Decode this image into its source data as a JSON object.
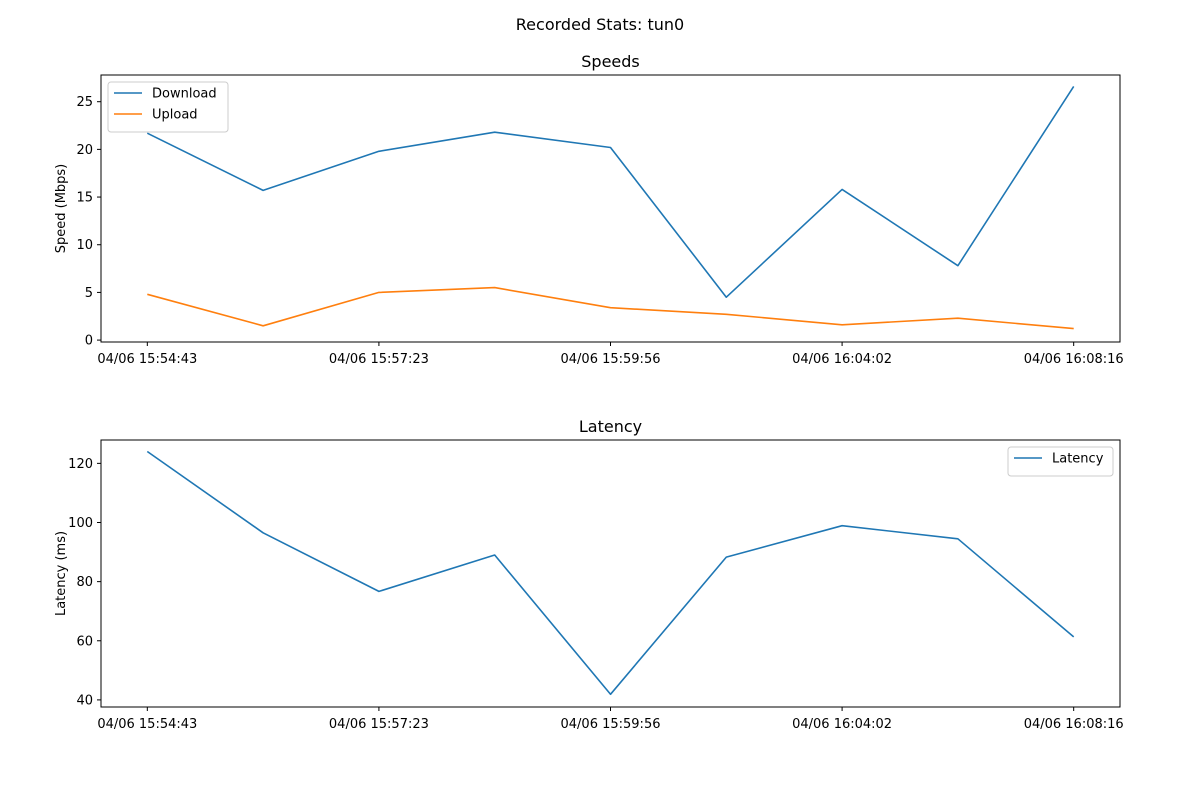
{
  "figure": {
    "title": "Recorded Stats: tun0"
  },
  "chart_data": [
    {
      "type": "line",
      "title": "Speeds",
      "xlabel": "",
      "ylabel": "Speed (Mbps)",
      "x_tick_labels": [
        "04/06 15:54:43",
        "04/06 15:57:23",
        "04/06 15:59:56",
        "04/06 16:04:02",
        "04/06 16:08:16"
      ],
      "x_tick_positions": [
        0,
        2,
        4,
        6,
        8
      ],
      "y_ticks": [
        0,
        5,
        10,
        15,
        20,
        25
      ],
      "ylim": [
        -0.2,
        27.8
      ],
      "xlim": [
        -0.4,
        8.4
      ],
      "grid": false,
      "legend": "upper left",
      "series": [
        {
          "name": "Download",
          "color": "#1f77b4",
          "values": [
            21.7,
            15.7,
            19.8,
            21.8,
            20.2,
            4.5,
            15.8,
            7.8,
            26.6
          ]
        },
        {
          "name": "Upload",
          "color": "#ff7f0e",
          "values": [
            4.8,
            1.5,
            5.0,
            5.5,
            3.4,
            2.7,
            1.6,
            2.3,
            1.2
          ]
        }
      ]
    },
    {
      "type": "line",
      "title": "Latency",
      "xlabel": "",
      "ylabel": "Latency (ms)",
      "x_tick_labels": [
        "04/06 15:54:43",
        "04/06 15:57:23",
        "04/06 15:59:56",
        "04/06 16:04:02",
        "04/06 16:08:16"
      ],
      "x_tick_positions": [
        0,
        2,
        4,
        6,
        8
      ],
      "y_ticks": [
        40,
        60,
        80,
        100,
        120
      ],
      "ylim": [
        37.6,
        127.9
      ],
      "xlim": [
        -0.4,
        8.4
      ],
      "grid": false,
      "legend": "upper right",
      "series": [
        {
          "name": "Latency",
          "color": "#1f77b4",
          "values": [
            124.0,
            96.5,
            76.7,
            89.0,
            41.9,
            88.3,
            98.9,
            94.5,
            61.3
          ]
        }
      ]
    }
  ]
}
